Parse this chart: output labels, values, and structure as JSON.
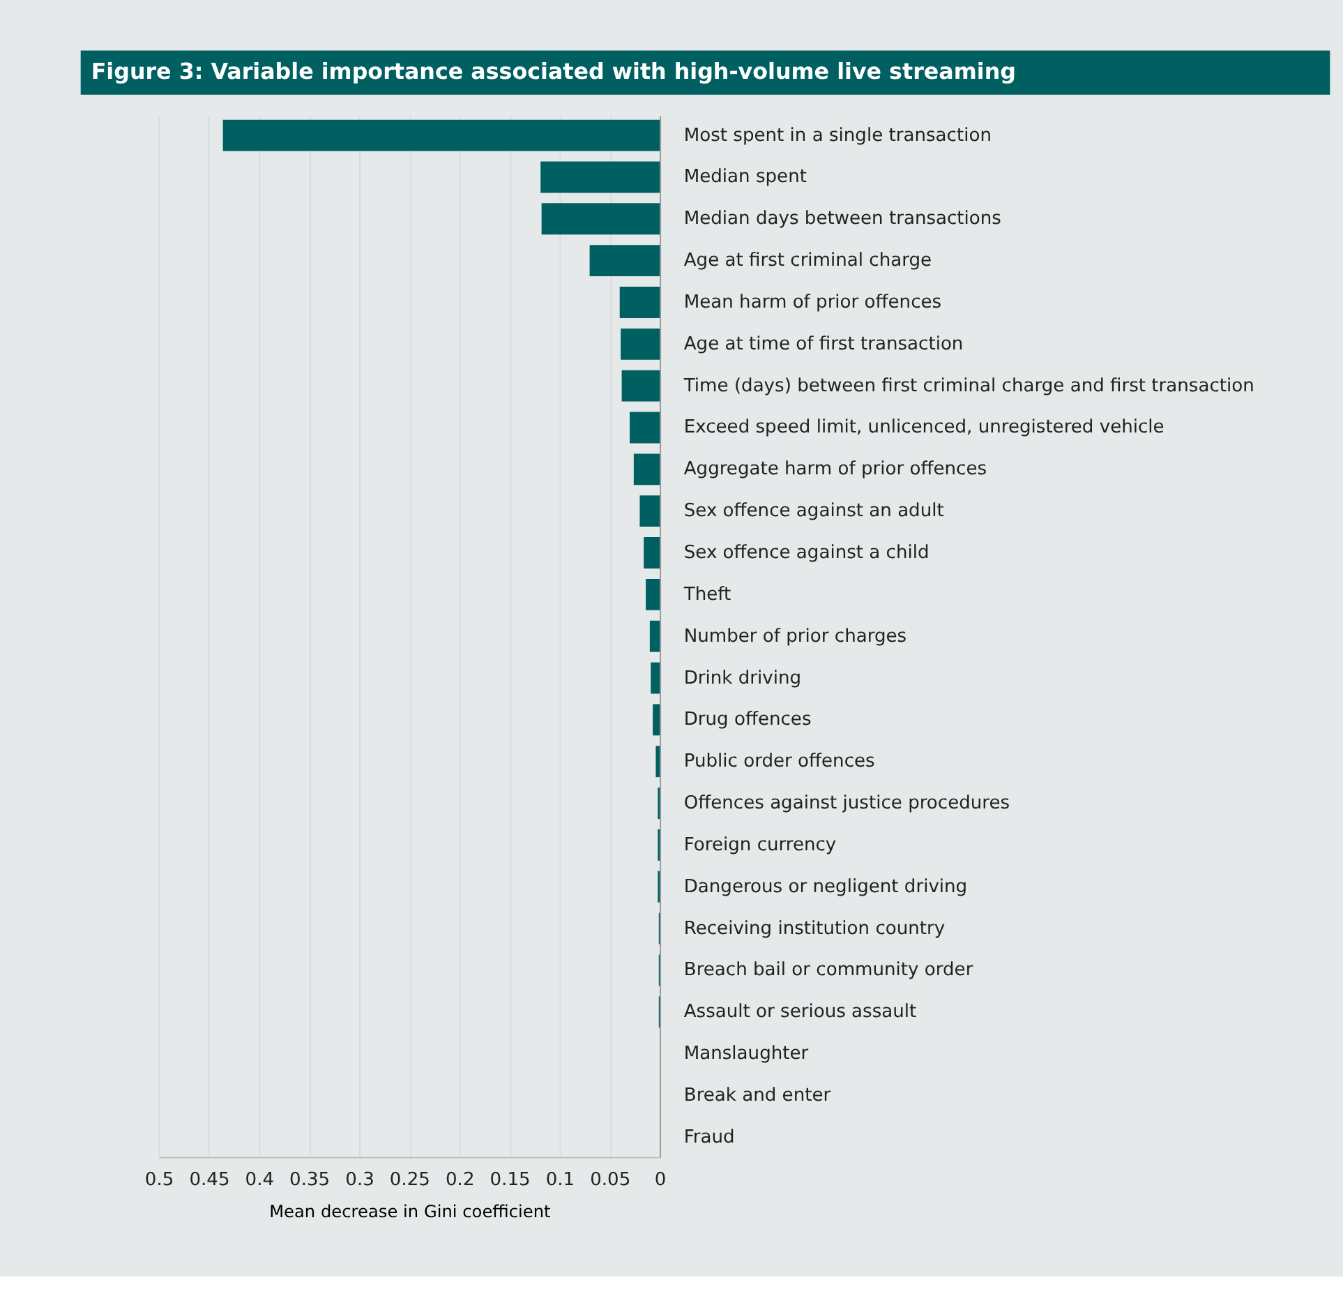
{
  "chart_data": {
    "type": "bar",
    "orientation": "horizontal",
    "title": "Figure 3: Variable importance associated with high-volume live streaming",
    "xlabel": "Mean decrease in Gini coefficient",
    "categories": [
      "Most spent in a single transaction",
      "Median spent",
      "Median days between transactions",
      "Age at first criminal charge",
      "Mean harm of prior offences",
      "Age at time of first transaction",
      "Time (days) between first criminal charge and first transaction",
      "Exceed speed limit, unlicenced, unregistered vehicle",
      "Aggregate harm of prior offences",
      "Sex offence against an adult",
      "Sex offence against a child",
      "Theft",
      "Number of prior charges",
      "Drink driving",
      "Drug offences",
      "Public order offences",
      "Offences against justice procedures",
      "Foreign currency",
      "Dangerous or negligent driving",
      "Receiving institution country",
      "Breach bail or community order",
      "Assault or serious assault",
      "Manslaughter",
      "Break and enter",
      "Fraud"
    ],
    "values": [
      0.436,
      0.119,
      0.118,
      0.07,
      0.04,
      0.039,
      0.038,
      0.03,
      0.026,
      0.02,
      0.016,
      0.014,
      0.01,
      0.009,
      0.007,
      0.004,
      0.002,
      0.002,
      0.002,
      0.001,
      0.001,
      0.001,
      0,
      0,
      0
    ],
    "color": "#005f61",
    "xlim": [
      0.5,
      0
    ],
    "xticks": [
      0.5,
      0.45,
      0.4,
      0.35,
      0.3,
      0.25,
      0.2,
      0.15,
      0.1,
      0.05,
      0
    ],
    "grid": "x"
  }
}
